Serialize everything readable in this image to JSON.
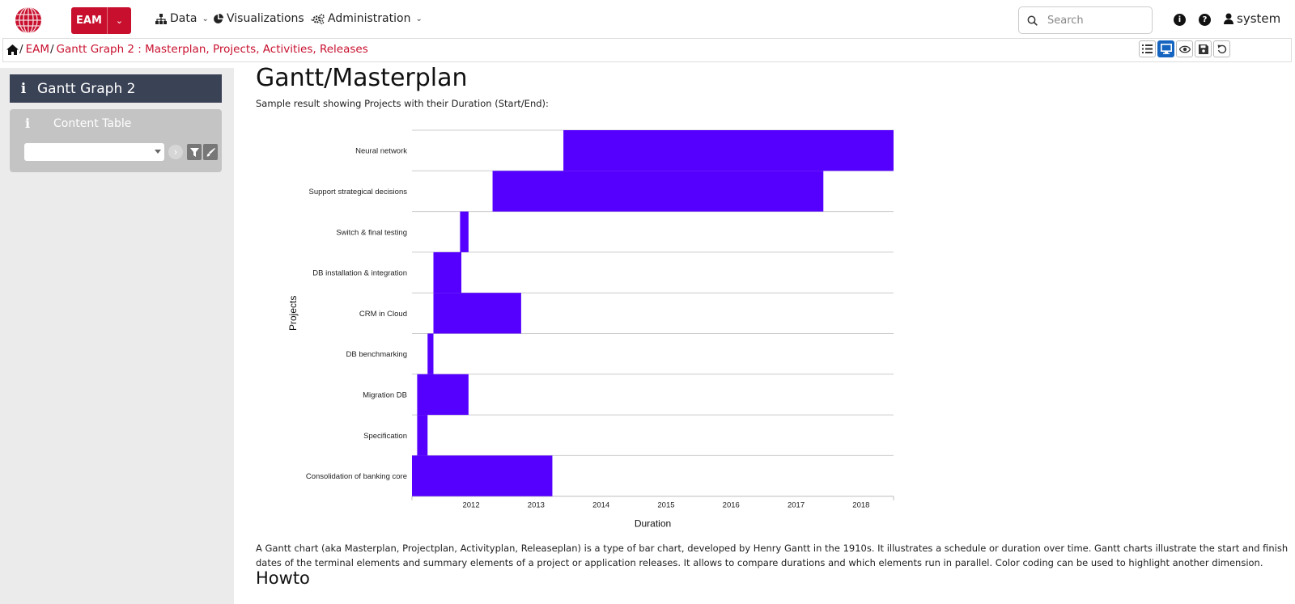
{
  "navbar": {
    "app_button_label": "EAM",
    "menu": [
      {
        "label": "Data",
        "icon": "sitemap-icon"
      },
      {
        "label": "Visualizations",
        "icon": "pie-chart-icon"
      },
      {
        "label": "Administration",
        "icon": "cogs-icon"
      }
    ],
    "search_placeholder": "Search",
    "user_name": "system"
  },
  "breadcrumb": {
    "items": [
      "EAM",
      "Gantt Graph 2 : Masterplan, Projects, Activities, Releases"
    ]
  },
  "toolbar": {
    "icons": [
      "list-icon",
      "desktop-icon",
      "eye-icon",
      "save-icon",
      "undo-icon"
    ],
    "active": "desktop-icon"
  },
  "sidebar": {
    "title": "Gantt Graph 2",
    "panel_title": "Content Table",
    "select_value": ""
  },
  "main": {
    "heading": "Gantt/Masterplan",
    "subtitle": "Sample result showing Projects with their Duration (Start/End):",
    "description": "A Gantt chart (aka Masterplan, Projectplan, Activityplan, Releaseplan) is a type of bar chart, developed by Henry Gantt in the 1910s. It illustrates a schedule or duration over time. Gantt charts illustrate the start and finish dates of the terminal elements and summary elements of a project or application releases. It allows to compare durations and which elements run in parallel. Color coding can be used to highlight another dimension.",
    "howto_heading": "Howto"
  },
  "colors": {
    "brand": "#c8102e",
    "bar": "#5500ff",
    "sidebar_title_bg": "#3a4256"
  },
  "chart_data": {
    "type": "bar",
    "orientation": "horizontal-gantt",
    "xlabel": "Duration",
    "ylabel": "Projects",
    "xlim": [
      2011.09,
      2018.5
    ],
    "xticks": [
      2012,
      2013,
      2014,
      2015,
      2016,
      2017,
      2018
    ],
    "grid": true,
    "categories": [
      "Neural network",
      "Support strategical decisions",
      "Switch & final testing",
      "DB installation & integration",
      "CRM in Cloud",
      "DB benchmarking",
      "Migration DB",
      "Specification",
      "Consolidation of banking core"
    ],
    "series": [
      {
        "start": [
          2013.42,
          2012.33,
          2011.83,
          2011.42,
          2011.42,
          2011.33,
          2011.17,
          2011.17,
          2011.09
        ],
        "end": [
          2018.5,
          2017.42,
          2011.96,
          2011.85,
          2012.77,
          2011.42,
          2011.96,
          2011.33,
          2013.25
        ]
      }
    ]
  }
}
